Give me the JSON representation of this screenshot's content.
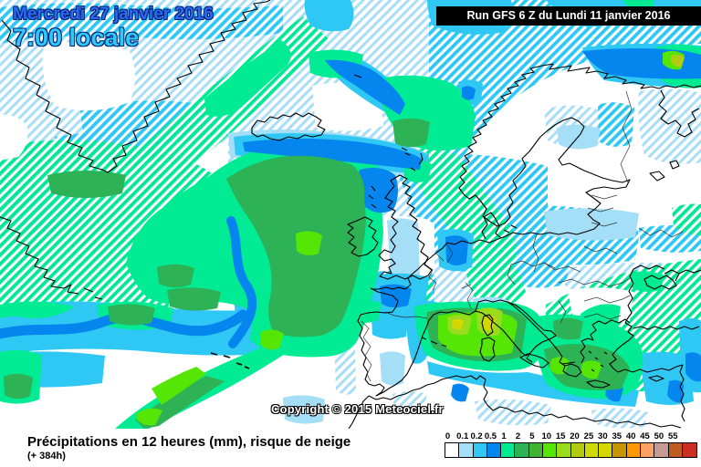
{
  "header": {
    "date_line": "Mercredi 27 janvier 2016",
    "time_line": "7:00 locale",
    "run_info": "Run GFS 6 Z du Lundi 11 janvier 2016",
    "date_color": "#2E6AF0",
    "time_color": "#2FC9F8"
  },
  "map": {
    "copyright": "Copyright © 2015 Meteociel.fr"
  },
  "footer": {
    "title": "Précipitations en 12 heures (mm), risque de neige",
    "lead_time": "(+ 384h)"
  },
  "legend": {
    "unit_labels": [
      "0",
      "0.1",
      "0.2",
      "0.5",
      "1",
      "2",
      "5",
      "10",
      "15",
      "20",
      "25",
      "30",
      "35",
      "40",
      "45",
      "50",
      "55"
    ],
    "colors": [
      "#FFFFFF",
      "#A5DEF7",
      "#2FC8F5",
      "#0585EE",
      "#01EB94",
      "#2EB256",
      "#3FB430",
      "#56E606",
      "#9ADB1D",
      "#B1CB11",
      "#CFD902",
      "#D6D600",
      "#C69500",
      "#FD9800",
      "#FCA263",
      "#C69B93",
      "#BF5B21",
      "#CB2D23"
    ]
  }
}
